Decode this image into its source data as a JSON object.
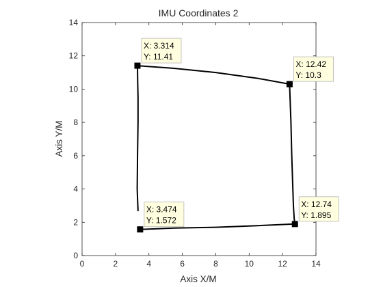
{
  "chart_data": {
    "type": "line",
    "title": "IMU Coordinates 2",
    "xlabel": "Axis X/M",
    "ylabel": "Axis Y/M",
    "xlim": [
      0,
      14
    ],
    "ylim": [
      0,
      14
    ],
    "xticks": [
      0,
      2,
      4,
      6,
      8,
      10,
      12,
      14
    ],
    "yticks": [
      0,
      2,
      4,
      6,
      8,
      10,
      12,
      14
    ],
    "grid": false,
    "series": [
      {
        "x": [
          3.35,
          3.3,
          3.32,
          3.35,
          3.35,
          3.33,
          3.314,
          5.5,
          8.0,
          10.5,
          12.42,
          12.5,
          12.55,
          12.6,
          12.65,
          12.7,
          12.74,
          10.5,
          8.0,
          5.5,
          3.474
        ],
        "y": [
          2.7,
          4.0,
          6.0,
          8.0,
          9.5,
          10.5,
          11.41,
          11.25,
          11.0,
          10.65,
          10.3,
          8.0,
          6.0,
          4.5,
          3.0,
          2.2,
          1.895,
          1.8,
          1.7,
          1.65,
          1.572
        ]
      }
    ],
    "datatips": [
      {
        "x": 3.314,
        "y": 11.41,
        "x_text": "X: 3.314",
        "y_text": "Y: 11.41"
      },
      {
        "x": 12.42,
        "y": 10.3,
        "x_text": "X: 12.42",
        "y_text": "Y: 10.3"
      },
      {
        "x": 12.74,
        "y": 1.895,
        "x_text": "X: 12.74",
        "y_text": "Y: 1.895"
      },
      {
        "x": 3.474,
        "y": 1.572,
        "x_text": "X: 3.474",
        "y_text": "Y: 1.572"
      }
    ],
    "colors": {
      "line": "#000000",
      "axes": "#262626",
      "tip_fill": "#ffffe0",
      "tip_border": "#b4b4b4"
    }
  }
}
